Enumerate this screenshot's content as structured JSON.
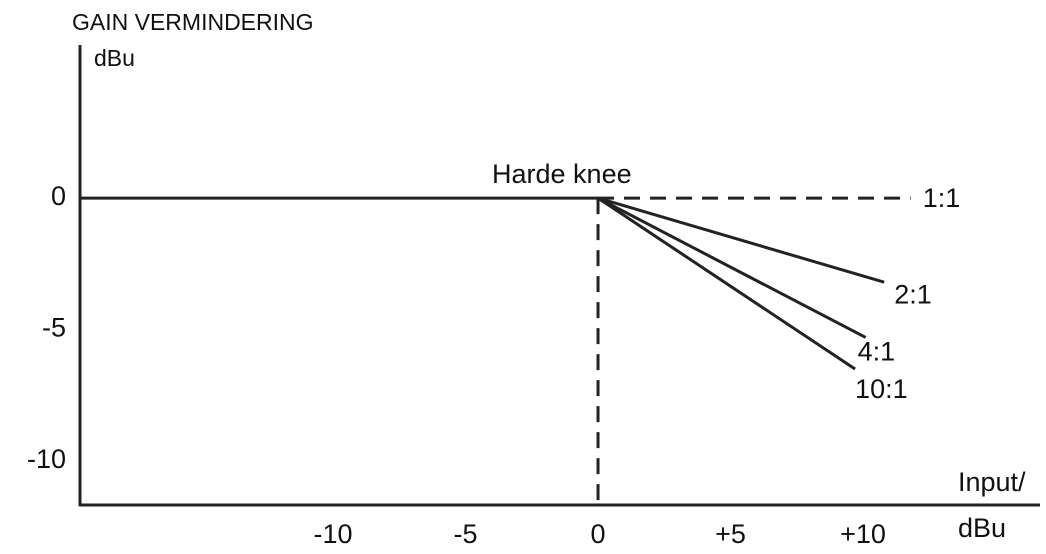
{
  "chart_data": {
    "type": "line",
    "ylabel": "GAIN VERMINDERING",
    "ylabel_unit": "dBu",
    "xlabel": "Input/",
    "xlabel_unit": "dBu",
    "knee": {
      "label": "Harde knee",
      "x": 0,
      "y": 0
    },
    "xlim": [
      -19.55,
      16.68
    ],
    "ylim": [
      -11.67,
      5.82
    ],
    "xticks": [
      -10,
      -5,
      0,
      {
        "value": 5,
        "label": "+5"
      },
      {
        "value": 10,
        "label": "+10"
      }
    ],
    "yticks": [
      0,
      -5,
      -10
    ],
    "color": "#222",
    "series": [
      {
        "x": [
          -19.55,
          0
        ],
        "values": [
          0,
          0
        ]
      },
      {
        "name": "1:1",
        "x": [
          0,
          11.8
        ],
        "values": [
          0,
          0
        ],
        "dashed": true
      },
      {
        "name": "2:1",
        "x": [
          0,
          10.8
        ],
        "values": [
          0,
          -3.2
        ]
      },
      {
        "name": "4:1",
        "x": [
          0,
          10.1
        ],
        "values": [
          0,
          -5.3
        ]
      },
      {
        "name": "10:1",
        "x": [
          0,
          9.7
        ],
        "values": [
          0,
          -6.5
        ]
      }
    ]
  }
}
